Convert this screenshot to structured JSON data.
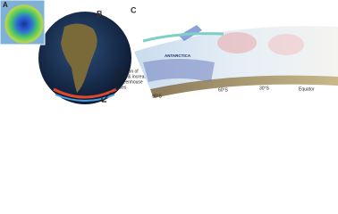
{
  "panels": [
    {
      "label": "A"
    },
    {
      "label": "B",
      "caption": [
        "Depletion of",
        "ozone & increase",
        "in greenhouse",
        "gases"
      ]
    },
    {
      "label": "C",
      "region": "ANTARCTICA",
      "latitudes": [
        "90°S",
        "60°S",
        "30°S",
        "Equator"
      ]
    }
  ]
}
